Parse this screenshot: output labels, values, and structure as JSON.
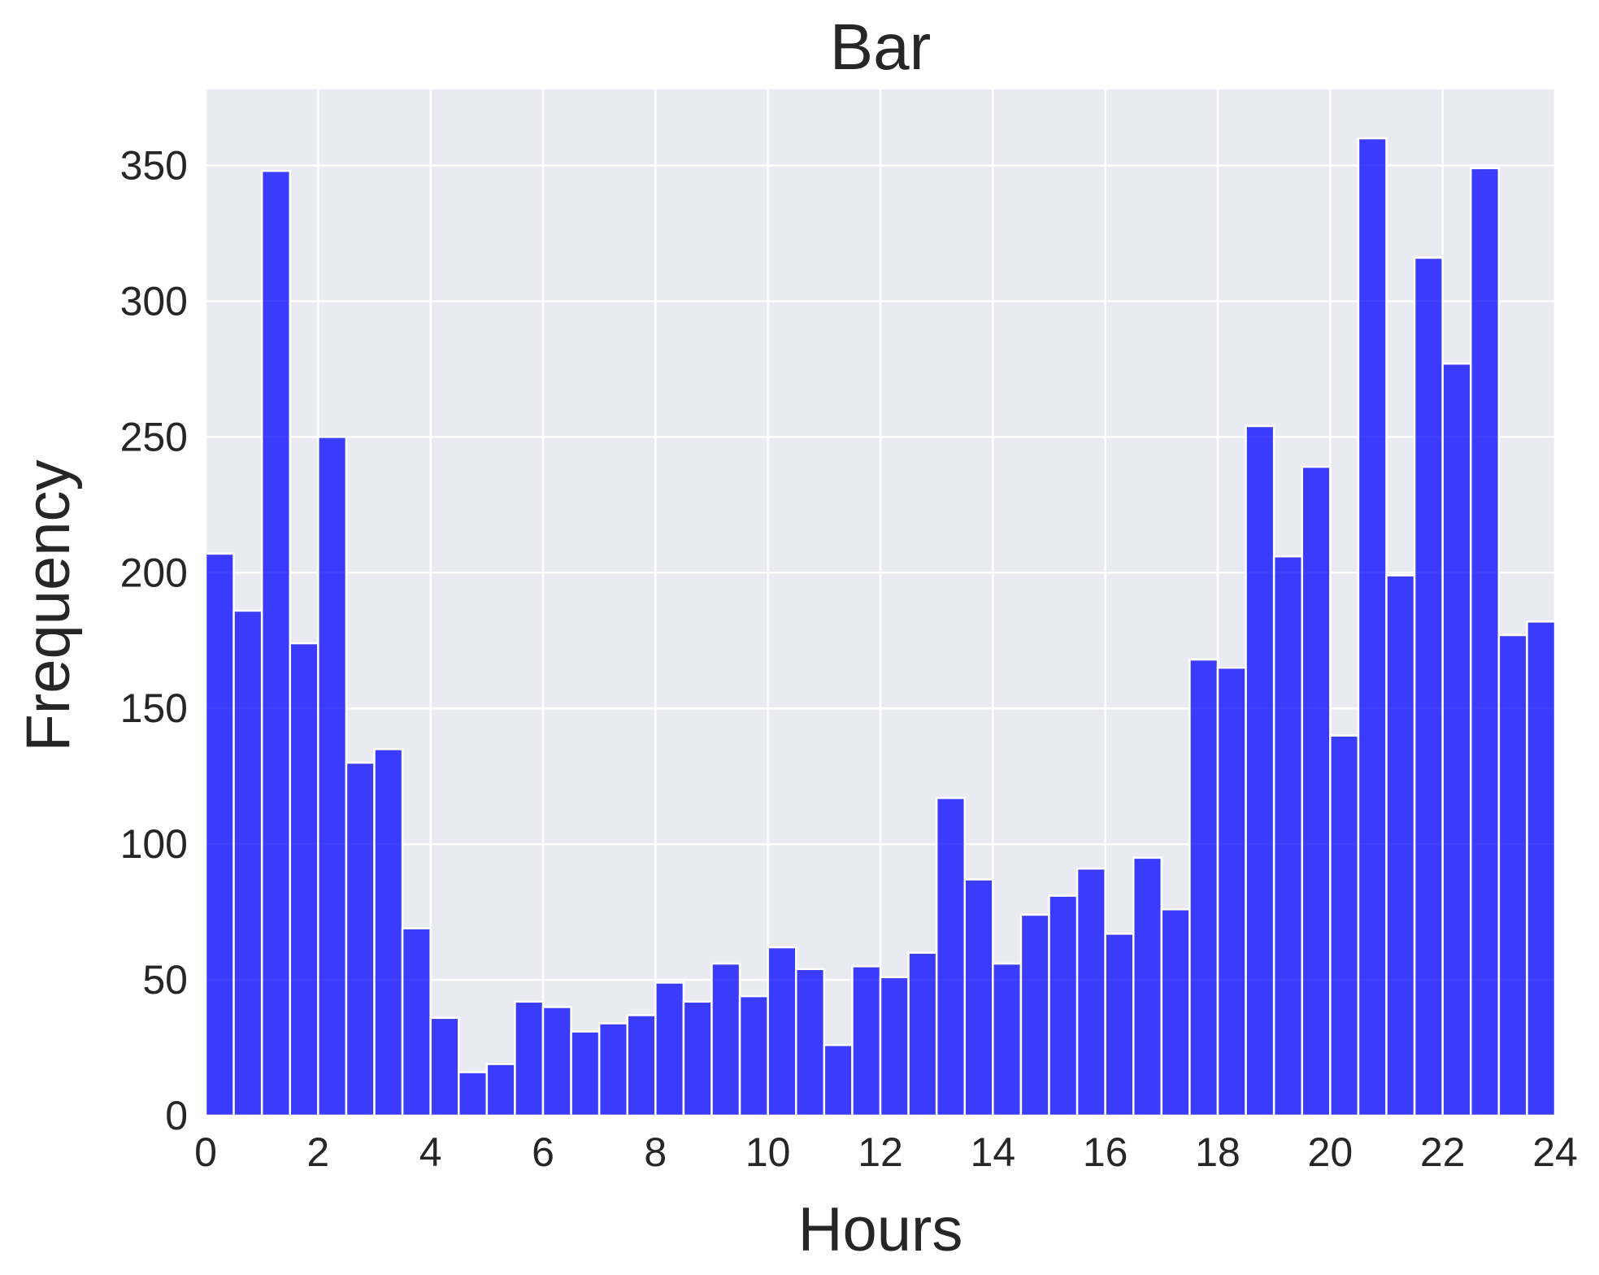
{
  "chart_data": {
    "type": "bar",
    "title": "Bar",
    "xlabel": "Hours",
    "ylabel": "Frequency",
    "xlim": [
      0,
      24
    ],
    "ylim": [
      0,
      378
    ],
    "bin_width": 0.5,
    "x_ticks": [
      "0",
      "2",
      "4",
      "6",
      "8",
      "10",
      "12",
      "14",
      "16",
      "18",
      "20",
      "22",
      "24"
    ],
    "y_ticks": [
      "0",
      "50",
      "100",
      "150",
      "200",
      "250",
      "300",
      "350"
    ],
    "bin_starts": [
      0,
      0.5,
      1,
      1.5,
      2,
      2.5,
      3,
      3.5,
      4,
      4.5,
      5,
      5.5,
      6,
      6.5,
      7,
      7.5,
      8,
      8.5,
      9,
      9.5,
      10,
      10.5,
      11,
      11.5,
      12,
      12.5,
      13,
      13.5,
      14,
      14.5,
      15,
      15.5,
      16,
      16.5,
      17,
      17.5,
      18,
      18.5,
      19,
      19.5,
      20,
      20.5,
      21,
      21.5,
      22,
      22.5,
      23,
      23.5
    ],
    "values": [
      207,
      186,
      348,
      174,
      250,
      130,
      135,
      69,
      36,
      16,
      19,
      42,
      40,
      31,
      34,
      37,
      49,
      42,
      56,
      44,
      62,
      54,
      26,
      55,
      51,
      60,
      117,
      87,
      56,
      74,
      81,
      91,
      67,
      95,
      76,
      168,
      165,
      254,
      206,
      239,
      140,
      360,
      199,
      316,
      277,
      349,
      177,
      182
    ],
    "bar_color": "#0000ff",
    "background_color": "#eaeaf2",
    "grid": true
  }
}
